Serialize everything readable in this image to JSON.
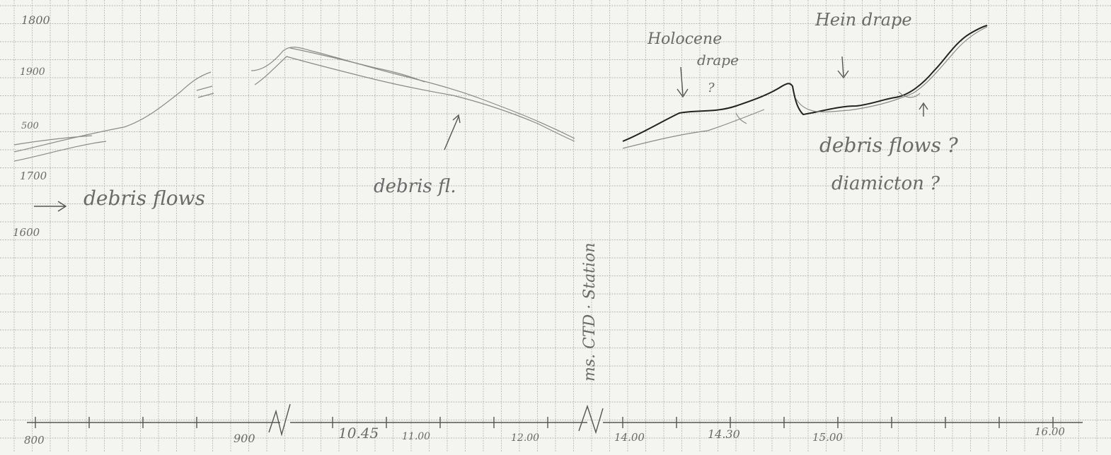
{
  "depth_labels": [
    "1800",
    "1900",
    "500",
    "1700",
    "1600"
  ],
  "time_labels": [
    "800",
    "900",
    "10.45",
    "11.00",
    "12.00",
    "14.00",
    "14.30",
    "15.00",
    "16.00"
  ],
  "annotations": {
    "debris_flows_left": "debris flows",
    "debris_fl_middle": "debris fl.",
    "holocene_drape": "Holocene",
    "holocene_drape_2": "drape",
    "holocene_q": "?",
    "plain_drape": "Hein drape",
    "debris_flows_right": "debris flows ?",
    "diamicton": "diamicton ?",
    "ctd_station": "ms. CTD · Station"
  },
  "colors": {
    "paper": "#f4f4f1",
    "grid": "#b8b8b8",
    "ink_faint": "#8a8a8a",
    "ink_dark": "#222222"
  }
}
